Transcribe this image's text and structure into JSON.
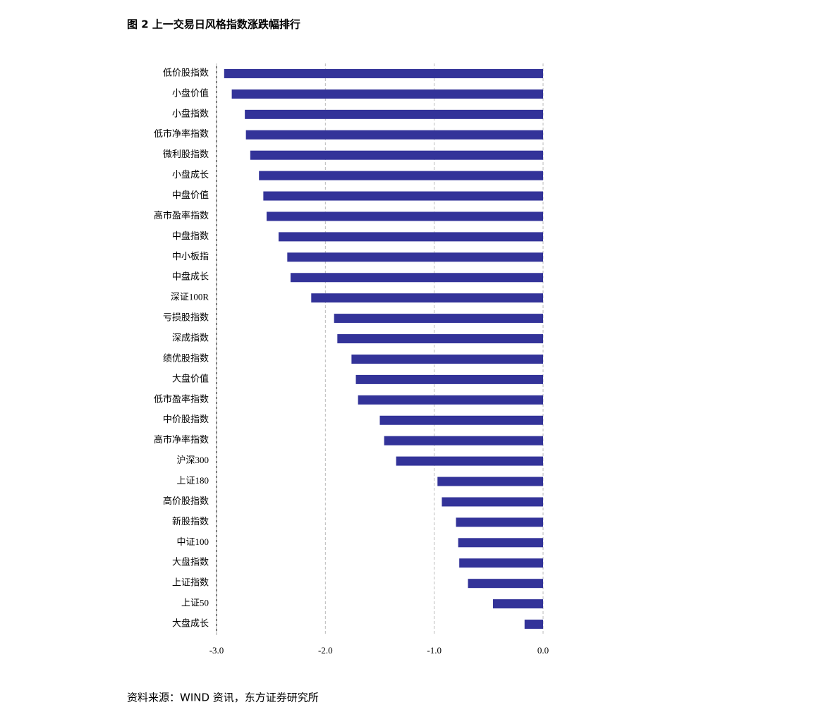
{
  "title": "图 2 上一交易日风格指数涨跌幅排行",
  "source": "资料来源：WIND 资讯，东方证券研究所",
  "chart_data": {
    "type": "bar",
    "orientation": "horizontal",
    "categories": [
      "低价股指数",
      "小盘价值",
      "小盘指数",
      "低市净率指数",
      "微利股指数",
      "小盘成长",
      "中盘价值",
      "高市盈率指数",
      "中盘指数",
      "中小板指",
      "中盘成长",
      "深证100R",
      "亏损股指数",
      "深成指数",
      "绩优股指数",
      "大盘价值",
      "低市盈率指数",
      "中价股指数",
      "高市净率指数",
      "沪深300",
      "上证180",
      "高价股指数",
      "新股指数",
      "中证100",
      "大盘指数",
      "上证指数",
      "上证50",
      "大盘成长"
    ],
    "values": [
      -2.93,
      -2.86,
      -2.74,
      -2.73,
      -2.69,
      -2.61,
      -2.57,
      -2.54,
      -2.43,
      -2.35,
      -2.32,
      -2.13,
      -1.92,
      -1.89,
      -1.76,
      -1.72,
      -1.7,
      -1.5,
      -1.46,
      -1.35,
      -0.97,
      -0.93,
      -0.8,
      -0.78,
      -0.77,
      -0.69,
      -0.46,
      -0.17
    ],
    "color": "#333399",
    "xlim": [
      -3,
      0
    ],
    "xticks": [
      {
        "value": -3,
        "label": "-3.0"
      },
      {
        "value": -2,
        "label": "-2.0"
      },
      {
        "value": -1,
        "label": "-1.0"
      },
      {
        "value": 0,
        "label": "0.0"
      }
    ],
    "grid": true
  }
}
